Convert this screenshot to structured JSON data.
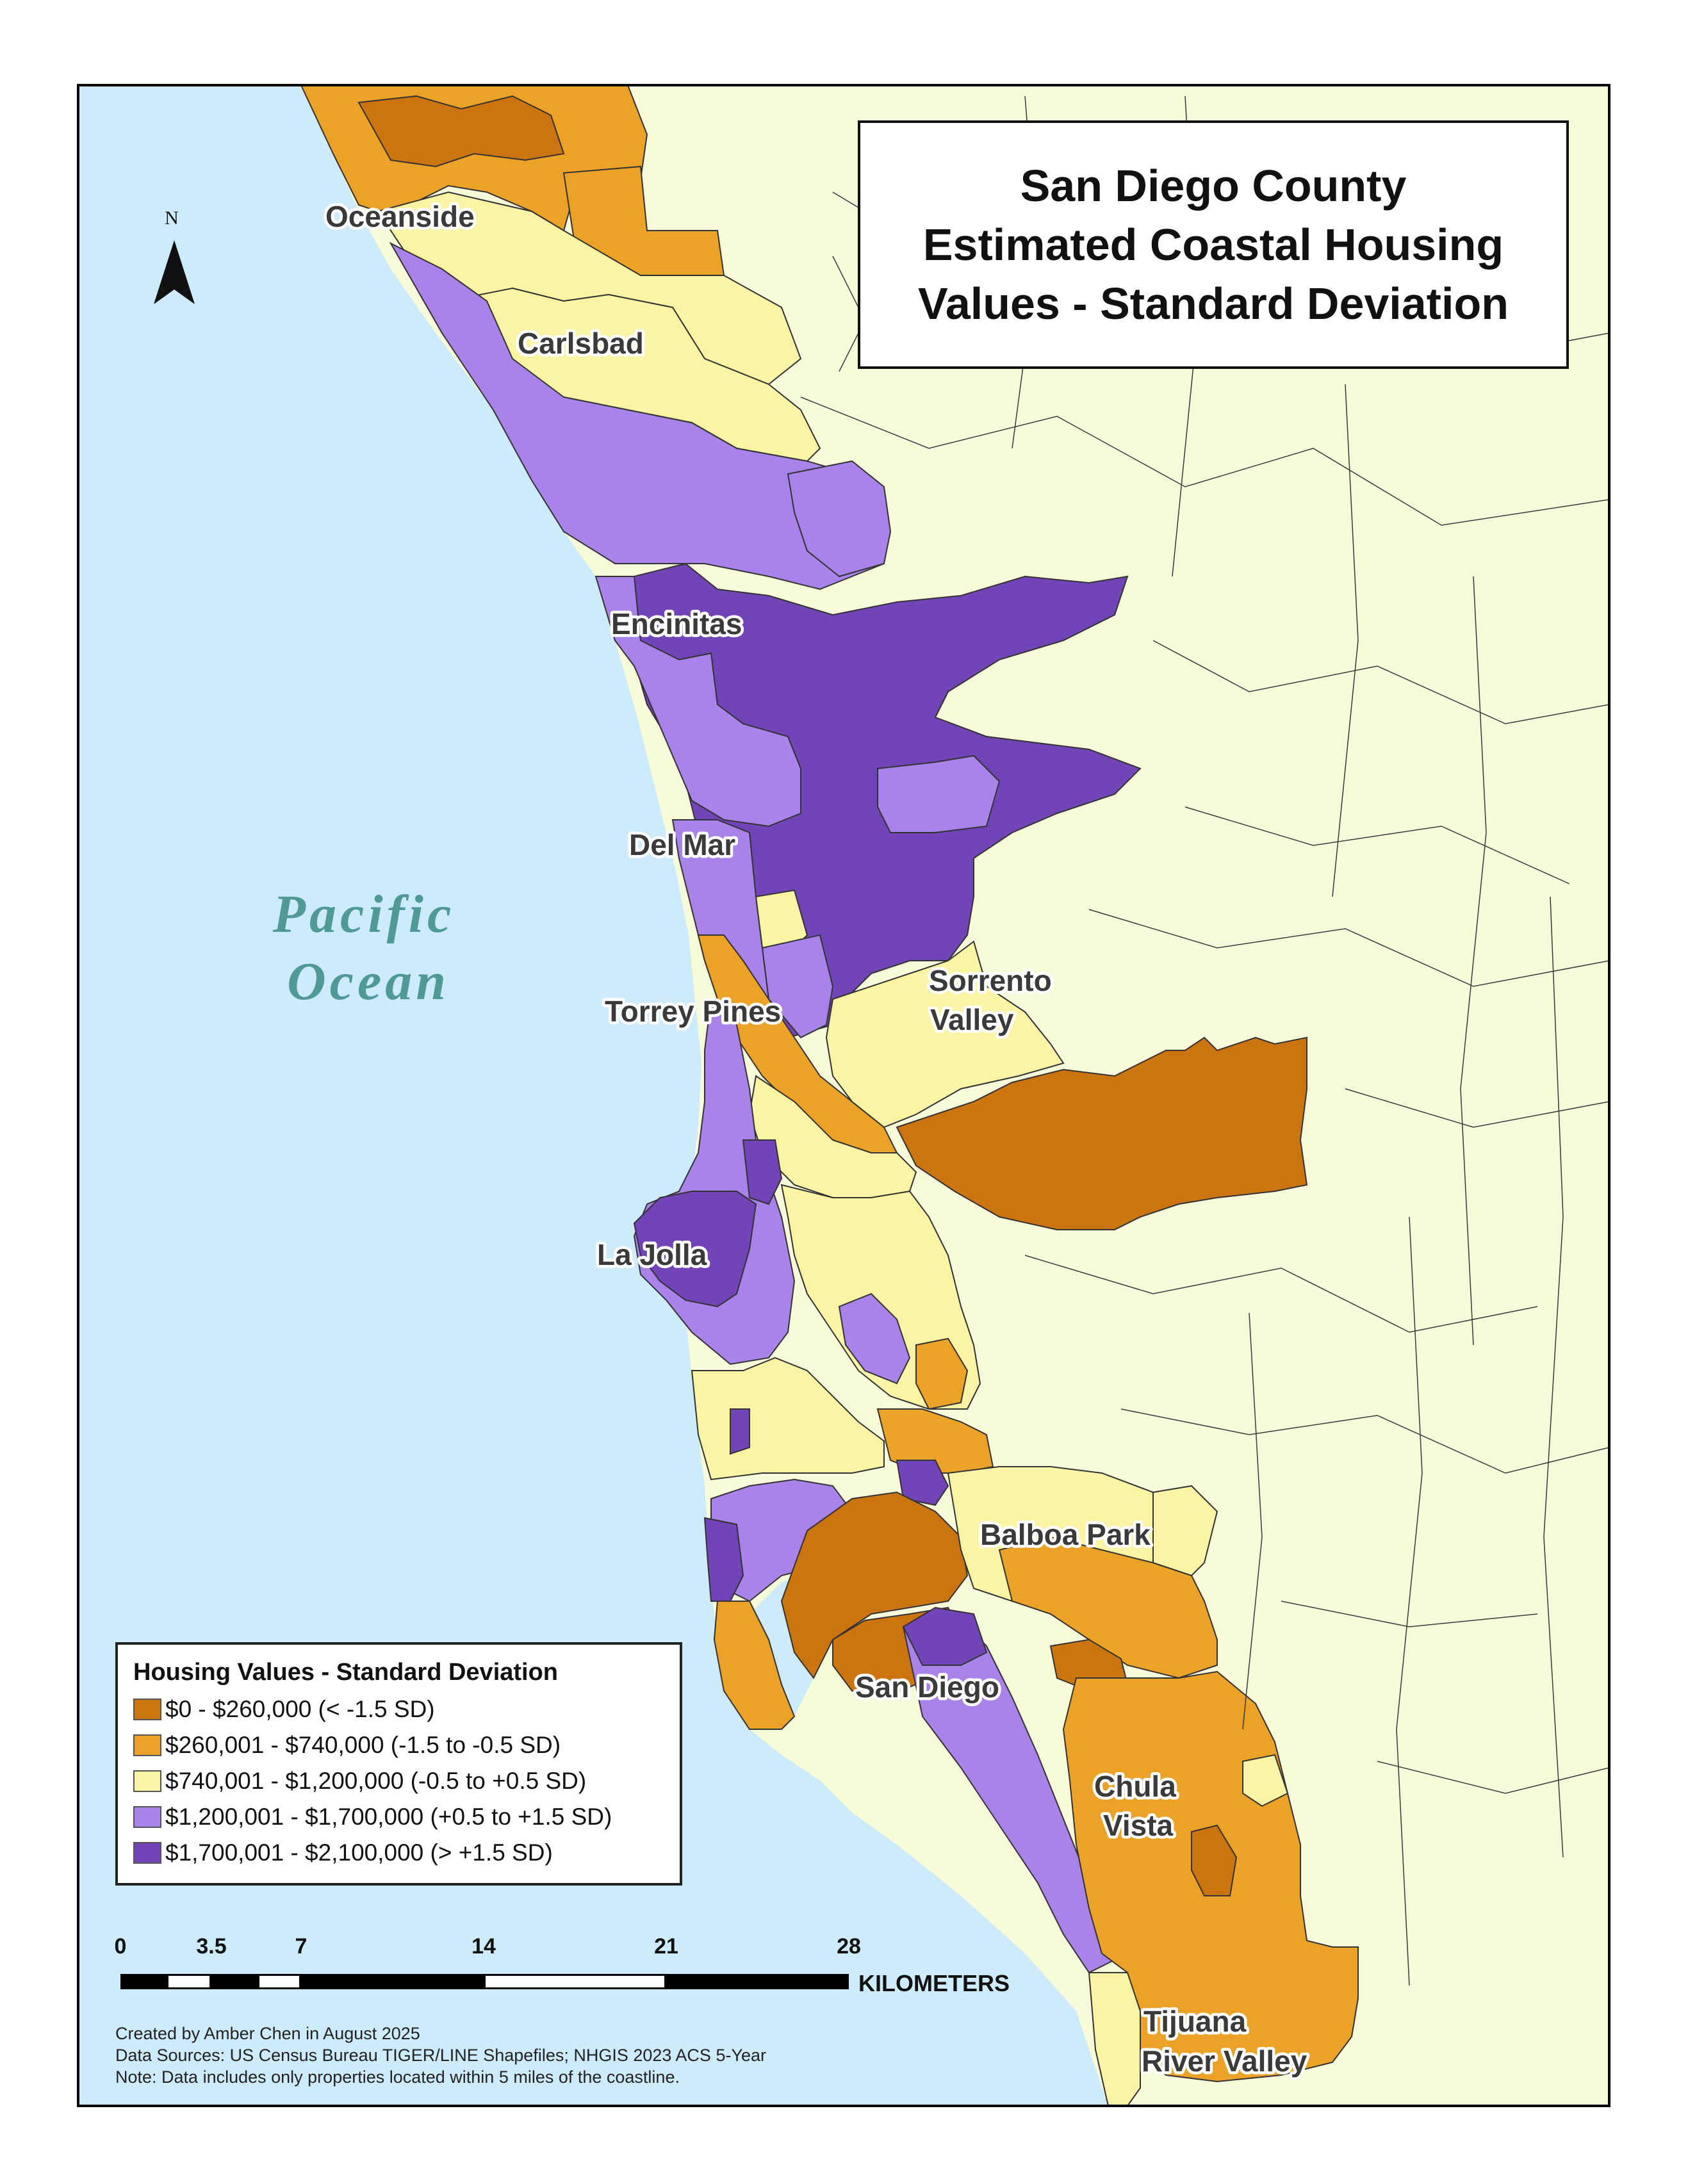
{
  "title": {
    "line1": "San Diego County",
    "line2": "Estimated Coastal Housing",
    "line3": "Values - Standard Deviation"
  },
  "north_arrow": {
    "label": "N"
  },
  "ocean_label": {
    "line1": "Pacific",
    "line2": "Ocean"
  },
  "places": [
    {
      "name": "Oceanside"
    },
    {
      "name": "Carlsbad"
    },
    {
      "name": "Encinitas"
    },
    {
      "name": "Del Mar"
    },
    {
      "name": "Torrey Pines"
    },
    {
      "name": "Sorrento",
      "line2": "Valley"
    },
    {
      "name": "La Jolla"
    },
    {
      "name": "Balboa Park"
    },
    {
      "name": "San Diego"
    },
    {
      "name": "Chula",
      "line2": "Vista"
    },
    {
      "name": "Tijuana",
      "line2": "River Valley"
    }
  ],
  "legend": {
    "title": "Housing Values - Standard Deviation",
    "classes": [
      {
        "label": "$0 - $260,000 (< -1.5 SD)",
        "color": "#cc7410"
      },
      {
        "label": "$260,001 - $740,000 (-1.5 to -0.5 SD)",
        "color": "#eba227"
      },
      {
        "label": "$740,001 - $1,200,000 (-0.5 to +0.5 SD)",
        "color": "#faf5a5"
      },
      {
        "label": "$1,200,001 - $1,700,000 (+0.5 to +1.5 SD)",
        "color": "#a783ea"
      },
      {
        "label": "$1,700,001 - $2,100,000 (> +1.5 SD)",
        "color": "#7144b8"
      }
    ]
  },
  "scale_bar": {
    "ticks": [
      "0",
      "3.5",
      "7",
      "14",
      "21",
      "28"
    ],
    "unit": "KILOMETERS"
  },
  "credits": {
    "created": "Created by Amber Chen in August 2025",
    "sources": "Data Sources: US Census Bureau TIGER/LINE Shapefiles; NHGIS 2023 ACS 5-Year",
    "note": "Note: Data includes only properties located within 5 miles of the coastline."
  },
  "colors": {
    "ocean": "#cdebfa",
    "land": "#f7fbd9",
    "boundary": "#3a3a3a"
  }
}
